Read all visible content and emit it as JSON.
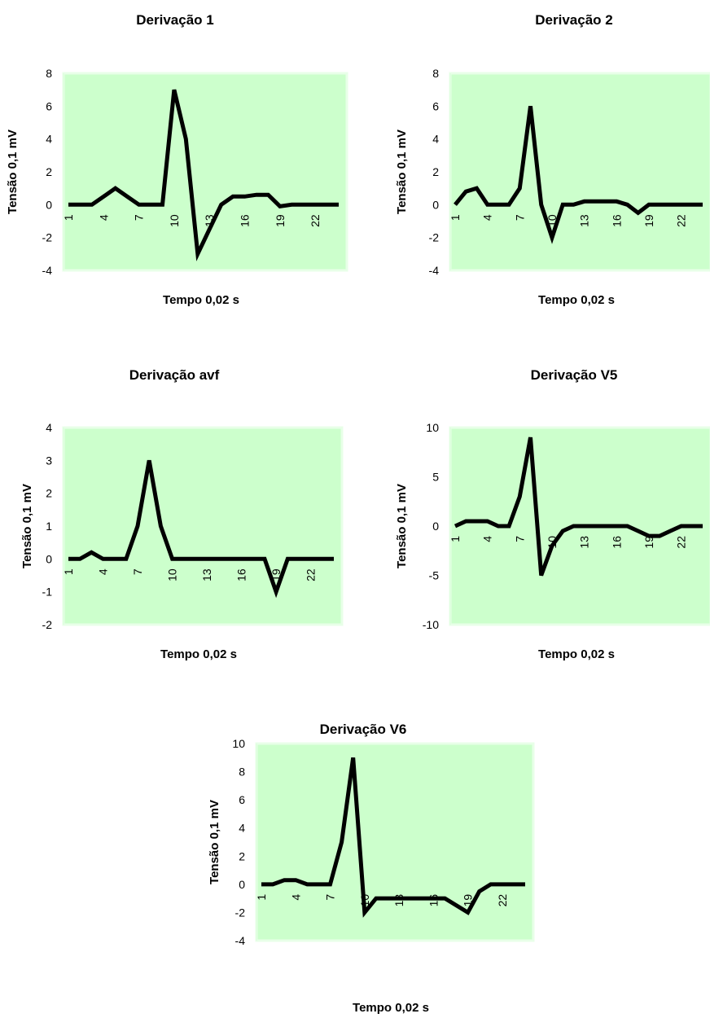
{
  "chart_data": [
    {
      "type": "line",
      "title": "Derivação  1",
      "xlabel": "Tempo 0,02 s",
      "ylabel": "Tensão 0,1 mV",
      "ylim": [
        -4,
        8
      ],
      "yticks": [
        8,
        6,
        4,
        2,
        0,
        -2,
        -4
      ],
      "xtick_labels": [
        "1",
        "4",
        "7",
        "10",
        "13",
        "16",
        "19",
        "22"
      ],
      "x": [
        1,
        2,
        3,
        4,
        5,
        6,
        7,
        8,
        9,
        10,
        11,
        12,
        13,
        14,
        15,
        16,
        17,
        18,
        19,
        20,
        21,
        22,
        23,
        24
      ],
      "values": [
        0,
        0,
        0,
        0.5,
        1,
        0.5,
        0,
        0,
        0,
        7,
        4,
        -3,
        -1.5,
        0,
        0.5,
        0.5,
        0.6,
        0.6,
        -0.1,
        0,
        0,
        0,
        0,
        0
      ],
      "plot_bg": "#ccffcc",
      "line_color": "#000000",
      "legend": "none",
      "grid": false
    },
    {
      "type": "line",
      "title": "Derivação 2",
      "xlabel": "Tempo 0,02 s",
      "ylabel": "Tensão 0,1 mV",
      "ylim": [
        -4,
        8
      ],
      "yticks": [
        8,
        6,
        4,
        2,
        0,
        -2,
        -4
      ],
      "xtick_labels": [
        "1",
        "4",
        "7",
        "10",
        "13",
        "16",
        "19",
        "22"
      ],
      "x": [
        1,
        2,
        3,
        4,
        5,
        6,
        7,
        8,
        9,
        10,
        11,
        12,
        13,
        14,
        15,
        16,
        17,
        18,
        19,
        20,
        21,
        22,
        23,
        24
      ],
      "values": [
        0,
        0.8,
        1,
        0,
        0,
        0,
        1,
        6,
        0,
        -2,
        0,
        0,
        0.2,
        0.2,
        0.2,
        0.2,
        0,
        -0.5,
        0,
        0,
        0,
        0,
        0,
        0
      ],
      "plot_bg": "#ccffcc",
      "line_color": "#000000",
      "legend": "none",
      "grid": false
    },
    {
      "type": "line",
      "title": "Derivação avf",
      "xlabel": "Tempo 0,02 s",
      "ylabel": "Tensão 0,1 mV",
      "ylim": [
        -2,
        4
      ],
      "yticks": [
        4,
        3,
        2,
        1,
        0,
        -1,
        -2
      ],
      "xtick_labels": [
        "1",
        "4",
        "7",
        "10",
        "13",
        "16",
        "19",
        "22"
      ],
      "x": [
        1,
        2,
        3,
        4,
        5,
        6,
        7,
        8,
        9,
        10,
        11,
        12,
        13,
        14,
        15,
        16,
        17,
        18,
        19,
        20,
        21,
        22,
        23,
        24
      ],
      "values": [
        0,
        0,
        0.2,
        0,
        0,
        0,
        1,
        3,
        1,
        0,
        0,
        0,
        0,
        0,
        0,
        0,
        0,
        0,
        -1,
        0,
        0,
        0,
        0,
        0
      ],
      "plot_bg": "#ccffcc",
      "line_color": "#000000",
      "legend": "none",
      "grid": false
    },
    {
      "type": "line",
      "title": "Derivação V5",
      "xlabel": "Tempo 0,02 s",
      "ylabel": "Tensão 0,1 mV",
      "ylim": [
        -10,
        10
      ],
      "yticks": [
        10,
        5,
        0,
        -5,
        -10
      ],
      "xtick_labels": [
        "1",
        "4",
        "7",
        "10",
        "13",
        "16",
        "19",
        "22"
      ],
      "x": [
        1,
        2,
        3,
        4,
        5,
        6,
        7,
        8,
        9,
        10,
        11,
        12,
        13,
        14,
        15,
        16,
        17,
        18,
        19,
        20,
        21,
        22,
        23,
        24
      ],
      "values": [
        0,
        0.5,
        0.5,
        0.5,
        0,
        0,
        3,
        9,
        -5,
        -2,
        -0.5,
        0,
        0,
        0,
        0,
        0,
        0,
        -0.5,
        -1,
        -1,
        -0.5,
        0,
        0,
        0
      ],
      "plot_bg": "#ccffcc",
      "line_color": "#000000",
      "legend": "none",
      "grid": false
    },
    {
      "type": "line",
      "title": "Derivação V6",
      "xlabel": "Tempo 0,02 s",
      "ylabel": "Tensão 0,1 mV",
      "ylim": [
        -4,
        10
      ],
      "yticks": [
        10,
        8,
        6,
        4,
        2,
        0,
        -2,
        -4
      ],
      "xtick_labels": [
        "1",
        "4",
        "7",
        "10",
        "13",
        "16",
        "19",
        "22"
      ],
      "x": [
        1,
        2,
        3,
        4,
        5,
        6,
        7,
        8,
        9,
        10,
        11,
        12,
        13,
        14,
        15,
        16,
        17,
        18,
        19,
        20,
        21,
        22,
        23,
        24
      ],
      "values": [
        0,
        0,
        0.3,
        0.3,
        0,
        0,
        0,
        3,
        9,
        -2,
        -1,
        -1,
        -1,
        -1,
        -1,
        -1,
        -1,
        -1.5,
        -2,
        -0.5,
        0,
        0,
        0,
        0
      ],
      "plot_bg": "#ccffcc",
      "line_color": "#000000",
      "legend": "none",
      "grid": false
    }
  ]
}
